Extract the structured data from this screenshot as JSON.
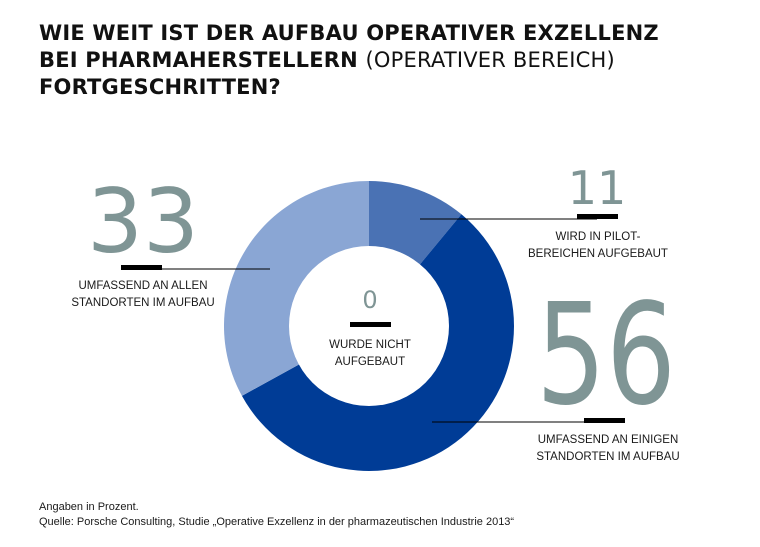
{
  "title": {
    "line1": "WIE WEIT IST DER AUFBAU OPERATIVER EXZELLENZ",
    "line2_bold": "BEI PHARMAHERSTELLERN",
    "line2_light": "(OPERATIVER BEREICH)",
    "line3": "FORTGESCHRITTEN?"
  },
  "chart_data": {
    "type": "pie",
    "subtype": "donut",
    "unit": "Prozent",
    "slices": [
      {
        "label": "WIRD IN PILOT-BEREICHEN AUFGEBAUT",
        "value": 11,
        "color": "#4a72b4"
      },
      {
        "label": "UMFASSEND AN EINIGEN STANDORTEN IM AUFBAU",
        "value": 56,
        "color": "#003c96"
      },
      {
        "label": "UMFASSEND AN ALLEN STANDORTEN IM AUFBAU",
        "value": 33,
        "color": "#8aa6d4"
      },
      {
        "label": "WURDE NICHT AUFGEBAUT",
        "value": 0,
        "color": "#ffffff"
      }
    ]
  },
  "callouts": {
    "pilot": {
      "value": "11",
      "label_line1": "WIRD IN PILOT-",
      "label_line2": "BEREICHEN AUFGEBAUT"
    },
    "einigen": {
      "value": "56",
      "label_line1": "UMFASSEND AN EINIGEN",
      "label_line2": "STANDORTEN IM AUFBAU"
    },
    "allen": {
      "value": "33",
      "label_line1": "UMFASSEND AN ALLEN",
      "label_line2": "STANDORTEN IM AUFBAU"
    },
    "nicht": {
      "value": "0",
      "label_line1": "WURDE NICHT",
      "label_line2": "AUFGEBAUT"
    }
  },
  "footer": {
    "unit_note": "Angaben in Prozent.",
    "source": "Quelle: Porsche Consulting, Studie „Operative Exzellenz in der pharmazeutischen Industrie 2013“"
  },
  "colors": {
    "number_gray": "#7f9595",
    "accent_black": "#000000"
  }
}
